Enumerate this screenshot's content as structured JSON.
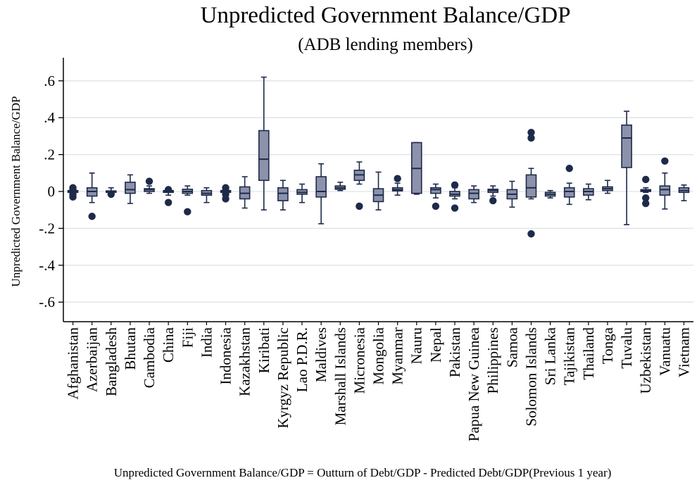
{
  "chart_data": {
    "type": "box",
    "title": "Unpredicted Government Balance/GDP",
    "subtitle": "(ADB lending members)",
    "ylabel": "Unpredicted Government Balance/GDP",
    "xlabel": "",
    "note": "Unpredicted Government Balance/GDP = Outturn of Debt/GDP - Predicted Debt/GDP(Previous 1 year)",
    "ylim": [
      -0.7,
      0.72
    ],
    "yticks": [
      -0.6,
      -0.4,
      -0.2,
      0,
      0.2,
      0.4,
      0.6
    ],
    "ytick_labels": [
      "-.6",
      "-.4",
      "-.2",
      "0",
      ".2",
      ".4",
      ".6"
    ],
    "grid": true,
    "colors": {
      "box_fill": "#8c92ab",
      "box_stroke": "#1e2a4a",
      "outlier": "#1e2a4a",
      "grid": "#dde3e8"
    },
    "categories": [
      "Afghanistan",
      "Azerbaijan",
      "Bangladesh",
      "Bhutan",
      "Cambodia",
      "China",
      "Fiji",
      "India",
      "Indonesia",
      "Kazakhstan",
      "Kiribati",
      "Kyrgyz Republic",
      "Lao P.D.R.",
      "Maldives",
      "Marshall Islands",
      "Micronesia",
      "Mongolia",
      "Myanmar",
      "Nauru",
      "Nepal",
      "Pakistan",
      "Papua New Guinea",
      "Philippines",
      "Samoa",
      "Solomon Islands",
      "Sri Lanka",
      "Tajikistan",
      "Thailand",
      "Tonga",
      "Tuvalu",
      "Uzbekistan",
      "Vanuatu",
      "Vietnam"
    ],
    "boxes": [
      {
        "wlo": -0.01,
        "q1": -0.005,
        "med": 0.0,
        "q3": 0.005,
        "whi": 0.01,
        "out": [
          0.02,
          0.01,
          -0.015,
          -0.03
        ]
      },
      {
        "wlo": -0.06,
        "q1": -0.025,
        "med": 0.0,
        "q3": 0.02,
        "whi": 0.1,
        "out": [
          -0.135
        ]
      },
      {
        "wlo": -0.005,
        "q1": -0.002,
        "med": 0.0,
        "q3": 0.003,
        "whi": 0.02,
        "out": [
          -0.015
        ]
      },
      {
        "wlo": -0.065,
        "q1": -0.01,
        "med": 0.01,
        "q3": 0.05,
        "whi": 0.09,
        "out": []
      },
      {
        "wlo": -0.01,
        "q1": 0.0,
        "med": 0.01,
        "q3": 0.015,
        "whi": 0.03,
        "out": [
          0.055
        ]
      },
      {
        "wlo": -0.02,
        "q1": -0.005,
        "med": 0.0,
        "q3": 0.005,
        "whi": 0.01,
        "out": [
          0.01,
          -0.06
        ]
      },
      {
        "wlo": -0.02,
        "q1": -0.01,
        "med": 0.0,
        "q3": 0.012,
        "whi": 0.03,
        "out": [
          -0.11
        ]
      },
      {
        "wlo": -0.06,
        "q1": -0.02,
        "med": -0.01,
        "q3": 0.005,
        "whi": 0.02,
        "out": []
      },
      {
        "wlo": -0.01,
        "q1": -0.005,
        "med": 0.0,
        "q3": 0.005,
        "whi": 0.01,
        "out": [
          0.02,
          0.005,
          -0.015,
          -0.04
        ]
      },
      {
        "wlo": -0.09,
        "q1": -0.04,
        "med": -0.01,
        "q3": 0.025,
        "whi": 0.08,
        "out": []
      },
      {
        "wlo": -0.1,
        "q1": 0.06,
        "med": 0.175,
        "q3": 0.33,
        "whi": 0.62,
        "out": []
      },
      {
        "wlo": -0.1,
        "q1": -0.05,
        "med": -0.01,
        "q3": 0.02,
        "whi": 0.06,
        "out": []
      },
      {
        "wlo": -0.06,
        "q1": -0.015,
        "med": -0.005,
        "q3": 0.01,
        "whi": 0.04,
        "out": []
      },
      {
        "wlo": -0.175,
        "q1": -0.03,
        "med": 0.0,
        "q3": 0.08,
        "whi": 0.15,
        "out": []
      },
      {
        "wlo": 0.005,
        "q1": 0.012,
        "med": 0.02,
        "q3": 0.03,
        "whi": 0.05,
        "out": []
      },
      {
        "wlo": 0.04,
        "q1": 0.06,
        "med": 0.09,
        "q3": 0.115,
        "whi": 0.16,
        "out": [
          -0.08
        ]
      },
      {
        "wlo": -0.1,
        "q1": -0.055,
        "med": -0.02,
        "q3": 0.015,
        "whi": 0.105,
        "out": []
      },
      {
        "wlo": -0.02,
        "q1": 0.003,
        "med": 0.01,
        "q3": 0.02,
        "whi": 0.045,
        "out": [
          0.07
        ]
      },
      {
        "wlo": -0.015,
        "q1": -0.01,
        "med": 0.125,
        "q3": 0.265,
        "whi": 0.265,
        "out": []
      },
      {
        "wlo": -0.035,
        "q1": -0.01,
        "med": 0.01,
        "q3": 0.02,
        "whi": 0.04,
        "out": [
          -0.08
        ]
      },
      {
        "wlo": -0.04,
        "q1": -0.025,
        "med": -0.015,
        "q3": 0.0,
        "whi": 0.02,
        "out": [
          0.035,
          -0.09
        ]
      },
      {
        "wlo": -0.06,
        "q1": -0.04,
        "med": -0.01,
        "q3": 0.01,
        "whi": 0.03,
        "out": []
      },
      {
        "wlo": -0.025,
        "q1": -0.005,
        "med": 0.005,
        "q3": 0.012,
        "whi": 0.03,
        "out": [
          -0.05
        ]
      },
      {
        "wlo": -0.085,
        "q1": -0.04,
        "med": -0.015,
        "q3": 0.01,
        "whi": 0.055,
        "out": []
      },
      {
        "wlo": -0.04,
        "q1": -0.03,
        "med": 0.02,
        "q3": 0.09,
        "whi": 0.125,
        "out": [
          0.32,
          0.29,
          -0.23
        ]
      },
      {
        "wlo": -0.035,
        "q1": -0.025,
        "med": -0.015,
        "q3": -0.005,
        "whi": 0.005,
        "out": []
      },
      {
        "wlo": -0.07,
        "q1": -0.03,
        "med": 0.0,
        "q3": 0.02,
        "whi": 0.045,
        "out": [
          0.125
        ]
      },
      {
        "wlo": -0.045,
        "q1": -0.02,
        "med": 0.0,
        "q3": 0.015,
        "whi": 0.04,
        "out": []
      },
      {
        "wlo": -0.01,
        "q1": 0.005,
        "med": 0.015,
        "q3": 0.025,
        "whi": 0.06,
        "out": []
      },
      {
        "wlo": -0.18,
        "q1": 0.13,
        "med": 0.29,
        "q3": 0.36,
        "whi": 0.435,
        "out": []
      },
      {
        "wlo": -0.005,
        "q1": 0.0,
        "med": 0.005,
        "q3": 0.01,
        "whi": 0.02,
        "out": [
          0.065,
          -0.035,
          -0.065
        ]
      },
      {
        "wlo": -0.095,
        "q1": -0.02,
        "med": 0.01,
        "q3": 0.03,
        "whi": 0.1,
        "out": [
          0.165
        ]
      },
      {
        "wlo": -0.05,
        "q1": -0.005,
        "med": 0.005,
        "q3": 0.02,
        "whi": 0.035,
        "out": []
      }
    ]
  }
}
